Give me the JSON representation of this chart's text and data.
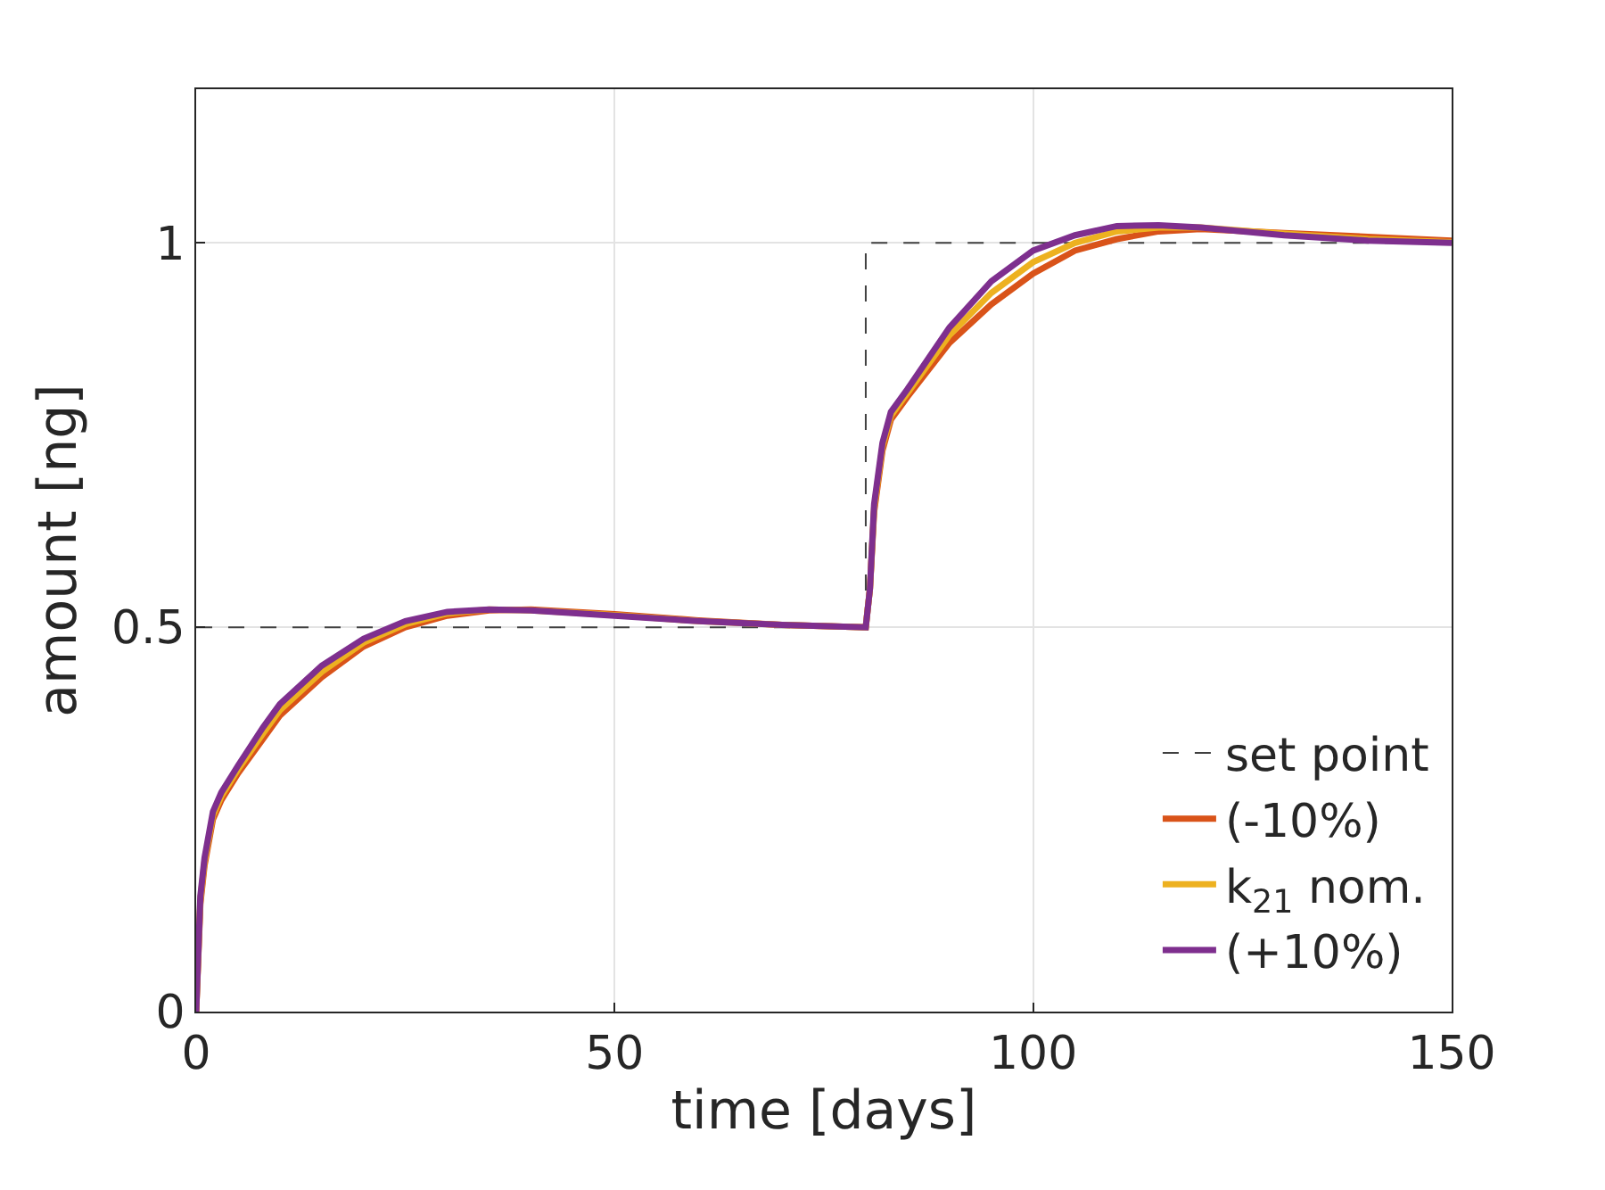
{
  "chart_data": {
    "type": "line",
    "xlabel": "time [days]",
    "ylabel": "amount [ng]",
    "xlim": [
      0,
      150
    ],
    "ylim": [
      0,
      1.2
    ],
    "xticks": [
      0,
      50,
      100,
      150
    ],
    "yticks": [
      0,
      0.5,
      1
    ],
    "grid": true,
    "legend": "bottom right",
    "series": [
      {
        "name": "set point",
        "color": "#404040",
        "line_style": "dashed",
        "x": [
          0,
          80,
          80,
          150
        ],
        "values": [
          0.5,
          0.5,
          1,
          1
        ]
      },
      {
        "name": "(-10%)",
        "color": "#d95319",
        "x": [
          0,
          0.5,
          1,
          2,
          3,
          5,
          8,
          10,
          15,
          20,
          25,
          30,
          35,
          40,
          50,
          60,
          70,
          80,
          80.5,
          81,
          82,
          83,
          85,
          90,
          95,
          100,
          105,
          110,
          115,
          120,
          130,
          140,
          150
        ],
        "values": [
          0,
          0.14,
          0.19,
          0.25,
          0.275,
          0.31,
          0.355,
          0.385,
          0.435,
          0.475,
          0.5,
          0.515,
          0.522,
          0.523,
          0.517,
          0.509,
          0.503,
          0.5,
          0.55,
          0.65,
          0.73,
          0.77,
          0.8,
          0.87,
          0.92,
          0.96,
          0.99,
          1.005,
          1.015,
          1.018,
          1.013,
          1.008,
          1.003
        ]
      },
      {
        "name": "k$_{21}$ nom.",
        "color": "#edb120",
        "x": [
          0,
          0.5,
          1,
          2,
          3,
          5,
          8,
          10,
          15,
          20,
          25,
          30,
          35,
          40,
          50,
          60,
          70,
          80,
          80.5,
          81,
          82,
          83,
          85,
          90,
          95,
          100,
          105,
          110,
          115,
          120,
          130,
          140,
          150
        ],
        "values": [
          0,
          0.145,
          0.195,
          0.255,
          0.28,
          0.315,
          0.362,
          0.392,
          0.442,
          0.48,
          0.504,
          0.518,
          0.523,
          0.522,
          0.516,
          0.508,
          0.503,
          0.5,
          0.55,
          0.655,
          0.735,
          0.775,
          0.805,
          0.88,
          0.935,
          0.975,
          1.0,
          1.015,
          1.02,
          1.02,
          1.012,
          1.005,
          1.001
        ]
      },
      {
        "name": "(+10%)",
        "color": "#7e2f8e",
        "x": [
          0,
          0.5,
          1,
          2,
          3,
          5,
          8,
          10,
          15,
          20,
          25,
          30,
          35,
          40,
          50,
          60,
          70,
          80,
          80.5,
          81,
          82,
          83,
          85,
          90,
          95,
          100,
          105,
          110,
          115,
          120,
          130,
          140,
          150
        ],
        "values": [
          0,
          0.15,
          0.2,
          0.26,
          0.285,
          0.32,
          0.37,
          0.4,
          0.45,
          0.485,
          0.508,
          0.52,
          0.523,
          0.522,
          0.515,
          0.508,
          0.503,
          0.5,
          0.55,
          0.66,
          0.74,
          0.78,
          0.81,
          0.89,
          0.95,
          0.99,
          1.01,
          1.022,
          1.023,
          1.02,
          1.01,
          1.003,
          1.0
        ]
      }
    ]
  }
}
